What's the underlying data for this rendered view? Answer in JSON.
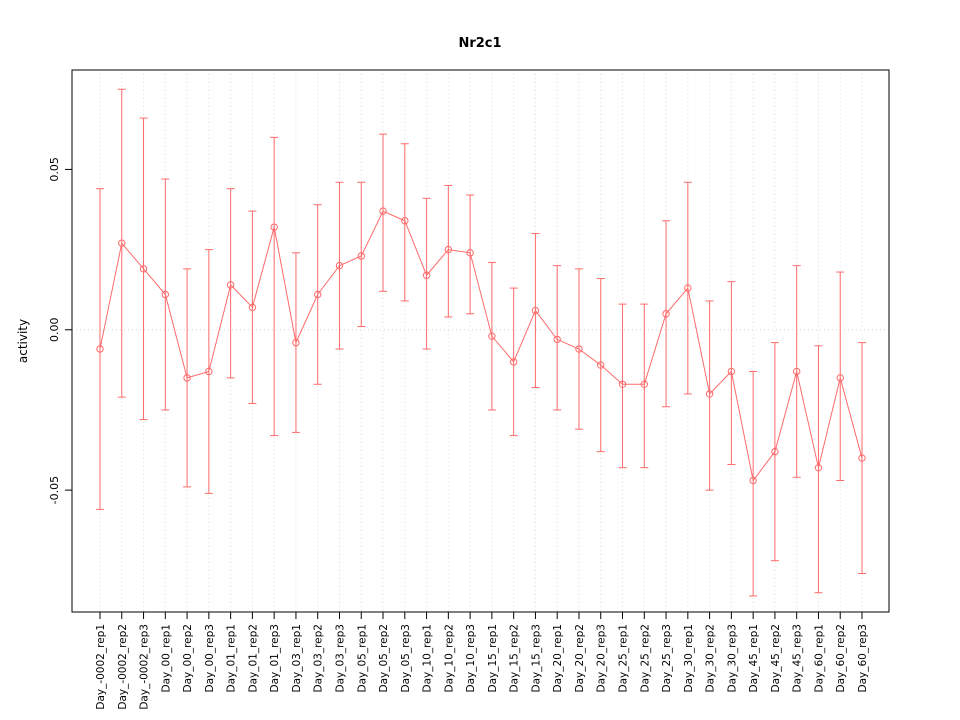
{
  "chart_data": {
    "type": "line",
    "title": "Nr2c1",
    "xlabel": "",
    "ylabel": "activity",
    "ylim": [
      -0.088,
      0.081
    ],
    "yticks": [
      {
        "value": -0.05,
        "label": "-0.05"
      },
      {
        "value": 0.0,
        "label": "0.00"
      },
      {
        "value": 0.05,
        "label": "0.05"
      }
    ],
    "grid": "dotted vertical line at each category; dotted horizontal line at 0",
    "legend_position": "none",
    "marker": "open-circle",
    "line_color": "#ff6a6a",
    "categories": [
      "Day_-0002_rep1",
      "Day_-0002_rep2",
      "Day_-0002_rep3",
      "Day_00_rep1",
      "Day_00_rep2",
      "Day_00_rep3",
      "Day_01_rep1",
      "Day_01_rep2",
      "Day_01_rep3",
      "Day_03_rep1",
      "Day_03_rep2",
      "Day_03_rep3",
      "Day_05_rep1",
      "Day_05_rep2",
      "Day_05_rep3",
      "Day_10_rep1",
      "Day_10_rep2",
      "Day_10_rep3",
      "Day_15_rep1",
      "Day_15_rep2",
      "Day_15_rep3",
      "Day_20_rep1",
      "Day_20_rep2",
      "Day_20_rep3",
      "Day_25_rep1",
      "Day_25_rep2",
      "Day_25_rep3",
      "Day_30_rep1",
      "Day_30_rep2",
      "Day_30_rep3",
      "Day_45_rep1",
      "Day_45_rep2",
      "Day_45_rep3",
      "Day_60_rep1",
      "Day_60_rep2",
      "Day_60_rep3"
    ],
    "series": [
      {
        "name": "activity",
        "values": [
          -0.006,
          0.027,
          0.019,
          0.011,
          -0.015,
          -0.013,
          0.014,
          0.007,
          0.032,
          -0.004,
          0.011,
          0.02,
          0.023,
          0.037,
          0.034,
          0.017,
          0.025,
          0.024,
          -0.002,
          -0.01,
          0.006,
          -0.003,
          -0.006,
          -0.011,
          -0.017,
          -0.017,
          0.005,
          0.013,
          -0.02,
          -0.013,
          -0.047,
          -0.038,
          -0.013,
          -0.043,
          -0.015,
          -0.04
        ],
        "error_high": [
          0.044,
          0.075,
          0.066,
          0.047,
          0.019,
          0.025,
          0.044,
          0.037,
          0.06,
          0.024,
          0.039,
          0.046,
          0.046,
          0.061,
          0.058,
          0.041,
          0.045,
          0.042,
          0.021,
          0.013,
          0.03,
          0.02,
          0.019,
          0.016,
          0.008,
          0.008,
          0.034,
          0.046,
          0.009,
          0.015,
          -0.013,
          -0.004,
          0.02,
          -0.005,
          0.018,
          -0.004
        ],
        "error_low": [
          -0.056,
          -0.021,
          -0.028,
          -0.025,
          -0.049,
          -0.051,
          -0.015,
          -0.023,
          -0.033,
          -0.032,
          -0.017,
          -0.006,
          0.001,
          0.012,
          0.009,
          -0.006,
          0.004,
          0.005,
          -0.025,
          -0.033,
          -0.018,
          -0.025,
          -0.031,
          -0.038,
          -0.043,
          -0.043,
          -0.024,
          -0.02,
          -0.05,
          -0.042,
          -0.083,
          -0.072,
          -0.046,
          -0.082,
          -0.047,
          -0.076
        ]
      }
    ]
  }
}
